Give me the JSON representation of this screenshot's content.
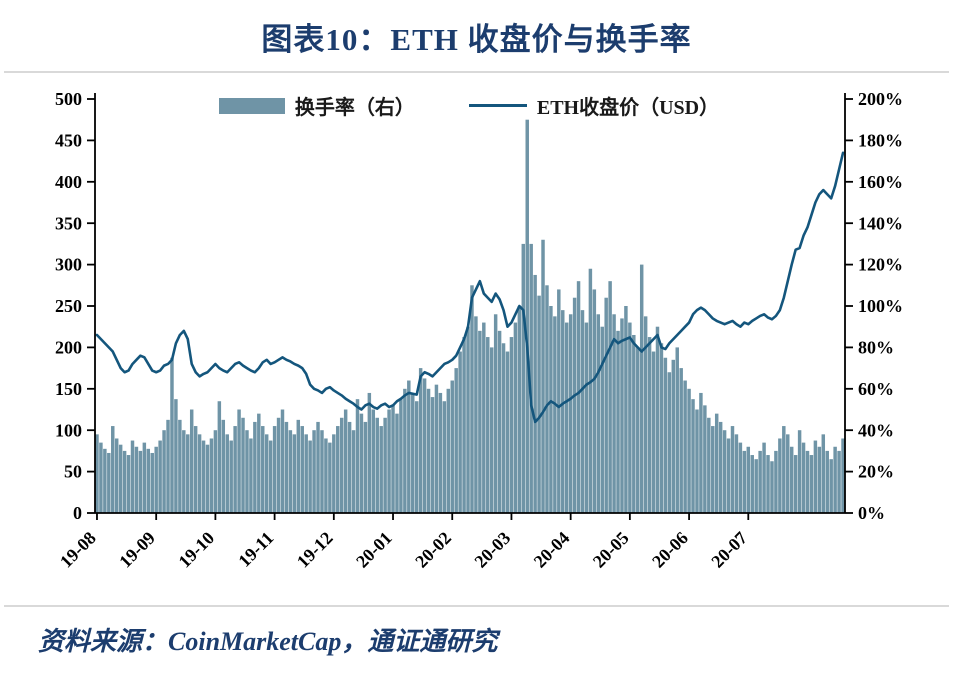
{
  "title": "图表10：ETH 收盘价与换手率",
  "footer": "资料来源：CoinMarketCap，通证通研究",
  "legend": {
    "bar": "换手率（右）",
    "line": "ETH收盘价（USD）"
  },
  "colors": {
    "bar": "#6f94a6",
    "line": "#14567d",
    "title": "#1c3d6e",
    "axis": "#000000"
  },
  "chart_data": {
    "type": "bar",
    "subtype": "combo-bar-line",
    "title": "图表10：ETH 收盘价与换手率",
    "x_tick_labels": [
      "19-08",
      "19-09",
      "19-10",
      "19-11",
      "19-12",
      "20-01",
      "20-02",
      "20-03",
      "20-04",
      "20-05",
      "20-06",
      "20-07"
    ],
    "x_tick_indices": [
      0,
      15,
      30,
      45,
      60,
      75,
      90,
      105,
      120,
      135,
      150,
      165
    ],
    "left_axis": {
      "label": "ETH收盘价（USD）",
      "min": 0,
      "max": 500,
      "step": 50,
      "suffix": ""
    },
    "right_axis": {
      "label": "换手率",
      "min": 0,
      "max": 200,
      "step": 20,
      "suffix": "%"
    },
    "legend_position": "top-center",
    "grid": false,
    "series": [
      {
        "name": "换手率（右）",
        "type": "bar",
        "axis": "right",
        "values": [
          38,
          34,
          31,
          29,
          42,
          36,
          33,
          30,
          28,
          35,
          32,
          30,
          34,
          31,
          29,
          32,
          35,
          40,
          45,
          75,
          55,
          45,
          40,
          38,
          50,
          42,
          38,
          35,
          33,
          36,
          40,
          54,
          45,
          38,
          35,
          42,
          50,
          46,
          40,
          36,
          44,
          48,
          42,
          38,
          35,
          42,
          46,
          50,
          44,
          40,
          38,
          45,
          42,
          38,
          35,
          40,
          44,
          40,
          36,
          34,
          38,
          42,
          46,
          50,
          44,
          40,
          55,
          48,
          44,
          58,
          50,
          46,
          42,
          46,
          50,
          52,
          48,
          55,
          60,
          64,
          58,
          54,
          70,
          65,
          60,
          56,
          62,
          58,
          54,
          60,
          64,
          70,
          78,
          85,
          90,
          110,
          95,
          88,
          92,
          85,
          80,
          96,
          88,
          82,
          78,
          85,
          92,
          100,
          130,
          190,
          130,
          115,
          105,
          132,
          110,
          100,
          95,
          108,
          98,
          92,
          96,
          104,
          112,
          98,
          92,
          118,
          108,
          96,
          90,
          104,
          112,
          96,
          88,
          94,
          100,
          92,
          86,
          80,
          120,
          95,
          85,
          78,
          90,
          82,
          75,
          68,
          74,
          80,
          70,
          64,
          60,
          55,
          50,
          58,
          52,
          46,
          42,
          48,
          44,
          40,
          36,
          42,
          38,
          34,
          30,
          32,
          28,
          26,
          30,
          34,
          28,
          25,
          30,
          36,
          42,
          38,
          32,
          28,
          40,
          34,
          30,
          28,
          35,
          32,
          38,
          30,
          26,
          32,
          30,
          36
        ]
      },
      {
        "name": "ETH收盘价（USD）",
        "type": "line",
        "axis": "left",
        "values": [
          215,
          210,
          205,
          200,
          195,
          185,
          175,
          170,
          172,
          180,
          185,
          190,
          188,
          180,
          172,
          170,
          172,
          178,
          180,
          185,
          205,
          215,
          220,
          210,
          180,
          170,
          165,
          168,
          170,
          175,
          180,
          175,
          172,
          170,
          175,
          180,
          182,
          178,
          175,
          172,
          170,
          175,
          182,
          185,
          180,
          182,
          185,
          188,
          185,
          183,
          180,
          178,
          175,
          168,
          155,
          150,
          148,
          145,
          150,
          152,
          148,
          145,
          142,
          138,
          135,
          132,
          128,
          125,
          130,
          132,
          128,
          126,
          130,
          132,
          128,
          130,
          135,
          138,
          142,
          145,
          144,
          143,
          165,
          170,
          168,
          165,
          170,
          175,
          180,
          182,
          185,
          190,
          200,
          210,
          225,
          260,
          270,
          280,
          265,
          260,
          255,
          265,
          258,
          245,
          225,
          230,
          240,
          250,
          245,
          200,
          130,
          110,
          115,
          122,
          130,
          135,
          132,
          128,
          132,
          135,
          138,
          142,
          145,
          150,
          155,
          158,
          162,
          170,
          180,
          190,
          200,
          210,
          205,
          208,
          210,
          212,
          205,
          200,
          195,
          200,
          205,
          210,
          215,
          200,
          198,
          205,
          210,
          215,
          220,
          225,
          230,
          240,
          245,
          248,
          245,
          240,
          235,
          232,
          230,
          228,
          230,
          232,
          228,
          225,
          230,
          228,
          232,
          235,
          238,
          240,
          236,
          234,
          238,
          245,
          260,
          280,
          300,
          318,
          320,
          335,
          345,
          360,
          375,
          385,
          390,
          385,
          380,
          395,
          415,
          435
        ]
      }
    ]
  }
}
